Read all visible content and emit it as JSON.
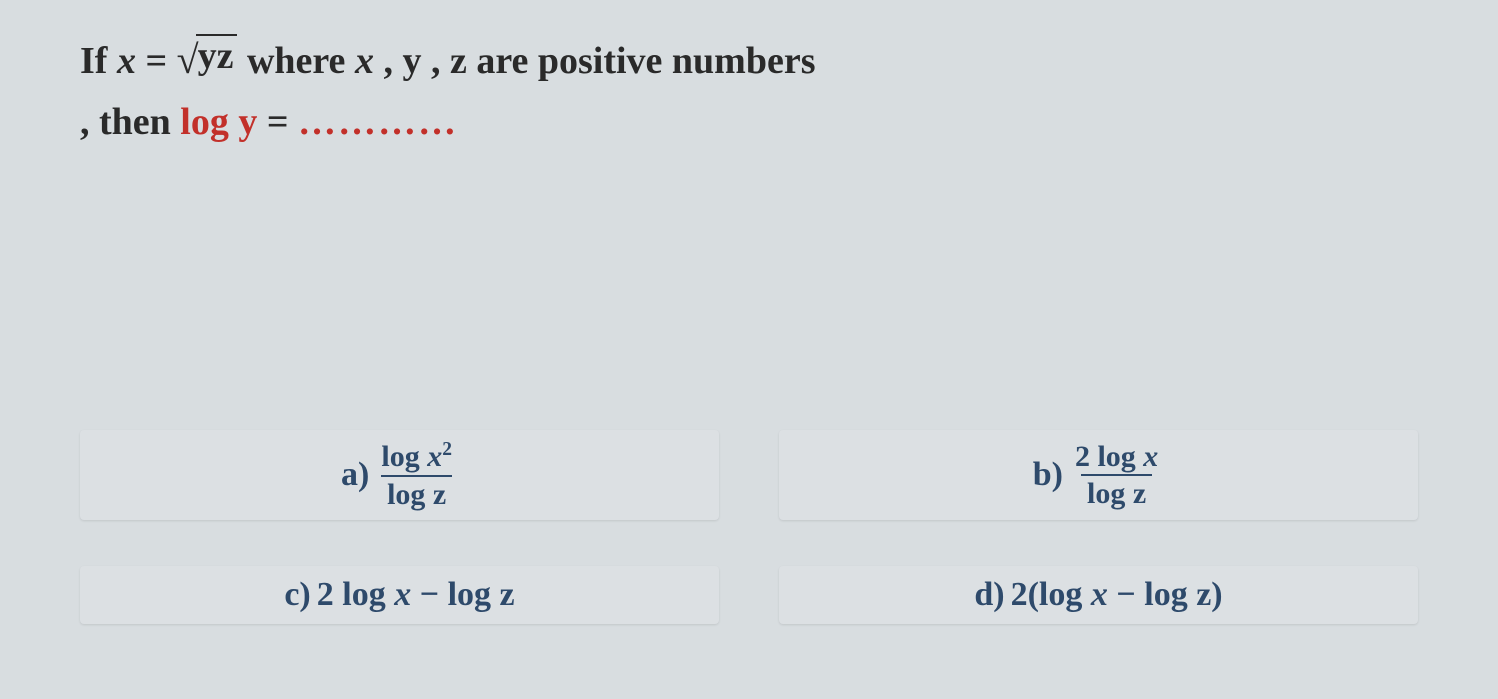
{
  "question": {
    "line1_prefix": "If ",
    "eq_left": "x",
    "eq_mid": " = ",
    "sqrt_arg": "yz",
    "line1_suffix_before_vars": " where ",
    "var_x": "x",
    "sep1": " , ",
    "var_y": "y",
    "sep2": " , ",
    "var_z": "z",
    "line1_suffix_after_vars": " are positive numbers",
    "line2_prefix": ", then ",
    "line2_logy": "log y",
    "line2_eq": " = ",
    "line2_dots": "…………"
  },
  "options": {
    "a": {
      "label": "a)",
      "num_log": "log ",
      "num_var": "x",
      "num_sup": "2",
      "den_log": "log ",
      "den_var": "z"
    },
    "b": {
      "label": "b)",
      "num_pre": "2 log ",
      "num_var": "x",
      "den_log": "log ",
      "den_var": "z"
    },
    "c": {
      "label": "c)",
      "t1": "2 log ",
      "v1": "x",
      "t2": " − log ",
      "v2": "z"
    },
    "d": {
      "label": "d)",
      "t1": "2(log ",
      "v1": "x",
      "t2": " − log ",
      "v2": "z",
      "t3": ")"
    }
  },
  "style": {
    "background_color": "#d8dde0",
    "question_black": "#2a2a2a",
    "question_red": "#c2302a",
    "answer_color": "#2e4a6b",
    "answer_bg": "#dce0e3",
    "question_fontsize": 38,
    "answer_fontsize": 34,
    "fraction_fontsize": 30
  }
}
